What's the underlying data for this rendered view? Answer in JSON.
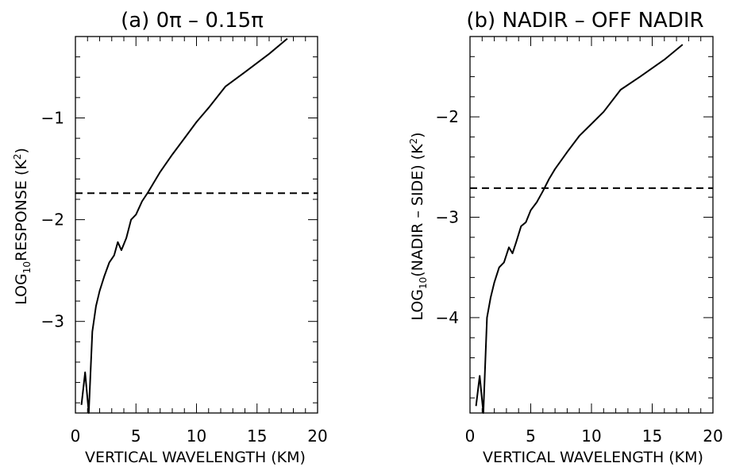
{
  "chart_data": [
    {
      "type": "line",
      "title": "(a) 0π – 0.15π",
      "xlabel": "VERTICAL WAVELENGTH (KM)",
      "ylabel_parts": {
        "pre": "LOG",
        "sub": "10",
        "post": "RESPONSE (K",
        "sup": "2",
        "end": ")"
      },
      "xlim": [
        0,
        20
      ],
      "ylim": [
        -3.9,
        -0.2
      ],
      "xticks": [
        0,
        5,
        10,
        15,
        20
      ],
      "xtick_labels": [
        "0",
        "5",
        "10",
        "15",
        "20"
      ],
      "yticks": [
        -3,
        -2,
        -1
      ],
      "ytick_labels": [
        "−3",
        "−2",
        "−1"
      ],
      "x_minor_step": 1,
      "y_minor_step": 0.2,
      "series": [
        {
          "style": "solid",
          "x": [
            0.5,
            0.8,
            1.1,
            1.4,
            1.7,
            2.0,
            2.4,
            2.8,
            3.2,
            3.5,
            3.8,
            4.2,
            4.6,
            5.0,
            5.5,
            6.0,
            6.5,
            7.0,
            8.0,
            9.0,
            10.0,
            11.0,
            12.4,
            14.0,
            16.0,
            17.5
          ],
          "y": [
            -3.82,
            -3.5,
            -3.9,
            -3.1,
            -2.85,
            -2.7,
            -2.55,
            -2.42,
            -2.35,
            -2.22,
            -2.3,
            -2.18,
            -2.0,
            -1.95,
            -1.82,
            -1.73,
            -1.63,
            -1.53,
            -1.36,
            -1.2,
            -1.04,
            -0.9,
            -0.69,
            -0.55,
            -0.37,
            -0.22
          ]
        },
        {
          "style": "dashed",
          "x": [
            0,
            20
          ],
          "y": [
            -1.74,
            -1.74
          ]
        }
      ]
    },
    {
      "type": "line",
      "title": "(b) NADIR – OFF NADIR",
      "xlabel": "VERTICAL WAVELENGTH (KM)",
      "ylabel_parts": {
        "pre": "LOG",
        "sub": "10",
        "post": "(NADIR – SIDE) (K",
        "sup": "2",
        "end": ")"
      },
      "xlim": [
        0,
        20
      ],
      "ylim": [
        -4.95,
        -1.2
      ],
      "xticks": [
        0,
        5,
        10,
        15,
        20
      ],
      "xtick_labels": [
        "0",
        "5",
        "10",
        "15",
        "20"
      ],
      "yticks": [
        -4,
        -3,
        -2
      ],
      "ytick_labels": [
        "−4",
        "−3",
        "−2"
      ],
      "x_minor_step": 1,
      "y_minor_step": 0.2,
      "series": [
        {
          "style": "solid",
          "x": [
            0.5,
            0.8,
            1.1,
            1.4,
            1.7,
            2.0,
            2.4,
            2.8,
            3.2,
            3.5,
            3.8,
            4.2,
            4.6,
            5.0,
            5.5,
            6.0,
            6.5,
            7.0,
            8.0,
            9.0,
            10.0,
            11.0,
            12.4,
            14.0,
            16.0,
            17.5
          ],
          "y": [
            -4.88,
            -4.58,
            -4.95,
            -4.0,
            -3.8,
            -3.65,
            -3.5,
            -3.45,
            -3.3,
            -3.36,
            -3.25,
            -3.09,
            -3.05,
            -2.93,
            -2.85,
            -2.74,
            -2.62,
            -2.52,
            -2.35,
            -2.19,
            -2.07,
            -1.95,
            -1.73,
            -1.6,
            -1.43,
            -1.28
          ]
        },
        {
          "style": "dashed",
          "x": [
            0,
            20
          ],
          "y": [
            -2.71,
            -2.71
          ]
        }
      ]
    }
  ]
}
